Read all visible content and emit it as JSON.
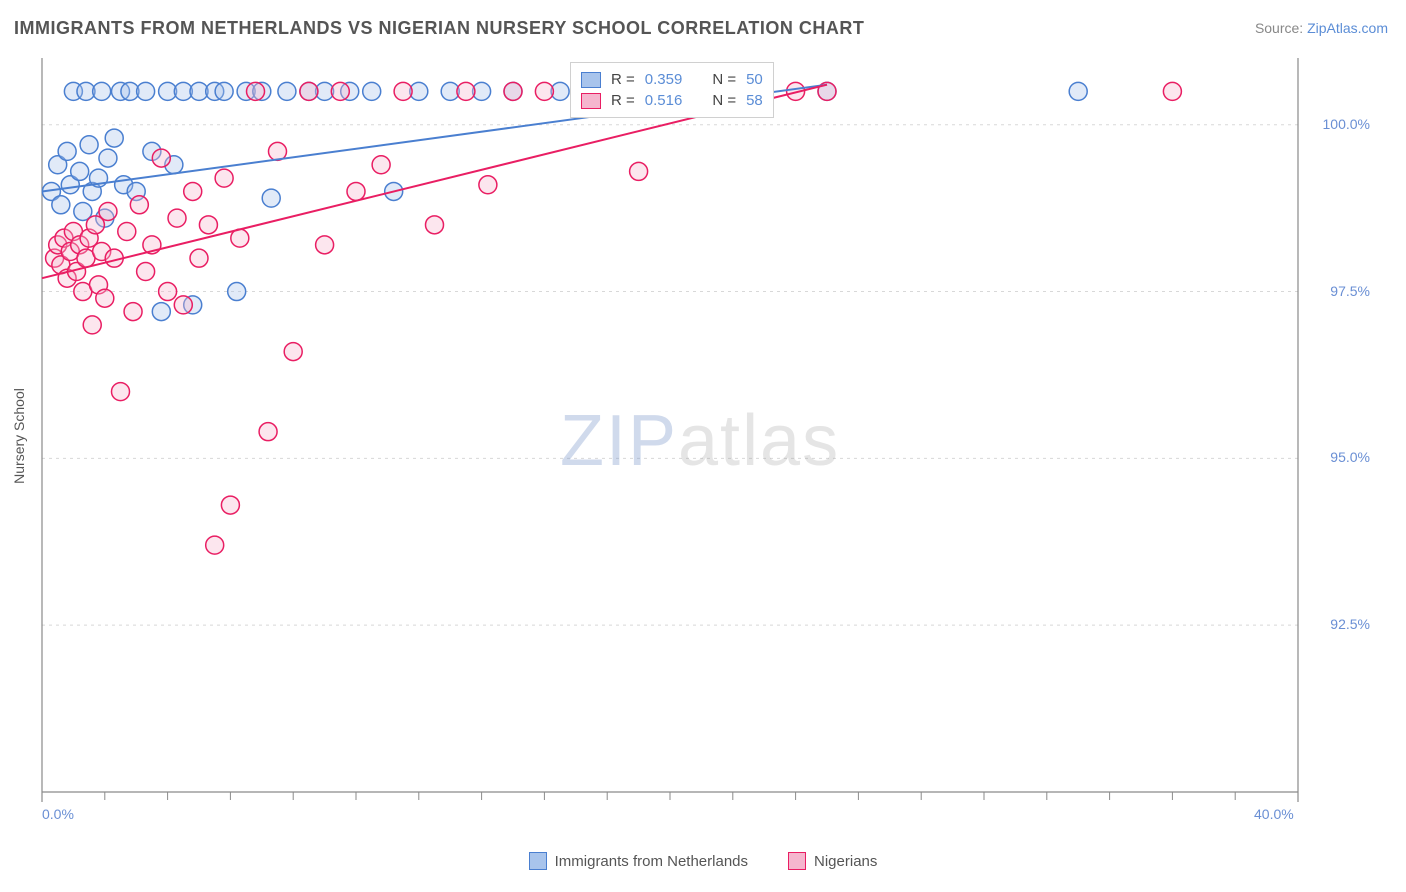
{
  "title": "IMMIGRANTS FROM NETHERLANDS VS NIGERIAN NURSERY SCHOOL CORRELATION CHART",
  "source_label": "Source: ",
  "source_link": "ZipAtlas.com",
  "ylabel": "Nursery School",
  "chart": {
    "type": "scatter",
    "xlim": [
      0,
      40
    ],
    "ylim": [
      90,
      101
    ],
    "xticks": [
      0,
      40
    ],
    "xtick_labels": [
      "0.0%",
      "40.0%"
    ],
    "ytick_values": [
      92.5,
      95.0,
      97.5,
      100.0
    ],
    "ytick_labels": [
      "92.5%",
      "95.0%",
      "97.5%",
      "100.0%"
    ],
    "x_minor_ticks": [
      2,
      4,
      6,
      8,
      10,
      12,
      14,
      16,
      18,
      20,
      22,
      24,
      26,
      28,
      30,
      32,
      34,
      36,
      38
    ],
    "grid_color": "#d8d8d8",
    "axis_color": "#8a8a8a",
    "background_color": "#ffffff",
    "marker_radius": 9,
    "marker_stroke_width": 1.5,
    "marker_fill_opacity": 0.35,
    "line_width": 2,
    "series": [
      {
        "name": "Immigrants from Netherlands",
        "color_stroke": "#4a7fd0",
        "color_fill": "#a8c4ec",
        "R": 0.359,
        "N": 50,
        "regression": {
          "x1": 0,
          "y1": 99.0,
          "x2": 25,
          "y2": 100.6
        },
        "points": [
          [
            0.3,
            99.0
          ],
          [
            0.5,
            99.4
          ],
          [
            0.6,
            98.8
          ],
          [
            0.8,
            99.6
          ],
          [
            0.9,
            99.1
          ],
          [
            1.0,
            100.5
          ],
          [
            1.2,
            99.3
          ],
          [
            1.3,
            98.7
          ],
          [
            1.4,
            100.5
          ],
          [
            1.5,
            99.7
          ],
          [
            1.6,
            99.0
          ],
          [
            1.8,
            99.2
          ],
          [
            1.9,
            100.5
          ],
          [
            2.0,
            98.6
          ],
          [
            2.1,
            99.5
          ],
          [
            2.3,
            99.8
          ],
          [
            2.5,
            100.5
          ],
          [
            2.6,
            99.1
          ],
          [
            2.8,
            100.5
          ],
          [
            3.0,
            99.0
          ],
          [
            3.3,
            100.5
          ],
          [
            3.5,
            99.6
          ],
          [
            3.8,
            97.2
          ],
          [
            4.0,
            100.5
          ],
          [
            4.2,
            99.4
          ],
          [
            4.5,
            100.5
          ],
          [
            4.8,
            97.3
          ],
          [
            5.0,
            100.5
          ],
          [
            5.5,
            100.5
          ],
          [
            5.8,
            100.5
          ],
          [
            6.2,
            97.5
          ],
          [
            6.5,
            100.5
          ],
          [
            7.0,
            100.5
          ],
          [
            7.3,
            98.9
          ],
          [
            7.8,
            100.5
          ],
          [
            8.5,
            100.5
          ],
          [
            9.0,
            100.5
          ],
          [
            9.8,
            100.5
          ],
          [
            10.5,
            100.5
          ],
          [
            11.2,
            99.0
          ],
          [
            12.0,
            100.5
          ],
          [
            13.0,
            100.5
          ],
          [
            14.0,
            100.5
          ],
          [
            15.0,
            100.5
          ],
          [
            16.5,
            100.5
          ],
          [
            18.0,
            100.5
          ],
          [
            19.5,
            100.5
          ],
          [
            22.0,
            100.5
          ],
          [
            25.0,
            100.5
          ],
          [
            33.0,
            100.5
          ]
        ]
      },
      {
        "name": "Nigerians",
        "color_stroke": "#e91e63",
        "color_fill": "#f5b6ce",
        "R": 0.516,
        "N": 58,
        "regression": {
          "x1": 0,
          "y1": 97.7,
          "x2": 25,
          "y2": 100.6
        },
        "points": [
          [
            0.4,
            98.0
          ],
          [
            0.5,
            98.2
          ],
          [
            0.6,
            97.9
          ],
          [
            0.7,
            98.3
          ],
          [
            0.8,
            97.7
          ],
          [
            0.9,
            98.1
          ],
          [
            1.0,
            98.4
          ],
          [
            1.1,
            97.8
          ],
          [
            1.2,
            98.2
          ],
          [
            1.3,
            97.5
          ],
          [
            1.4,
            98.0
          ],
          [
            1.5,
            98.3
          ],
          [
            1.6,
            97.0
          ],
          [
            1.7,
            98.5
          ],
          [
            1.8,
            97.6
          ],
          [
            1.9,
            98.1
          ],
          [
            2.0,
            97.4
          ],
          [
            2.1,
            98.7
          ],
          [
            2.3,
            98.0
          ],
          [
            2.5,
            96.0
          ],
          [
            2.7,
            98.4
          ],
          [
            2.9,
            97.2
          ],
          [
            3.1,
            98.8
          ],
          [
            3.3,
            97.8
          ],
          [
            3.5,
            98.2
          ],
          [
            3.8,
            99.5
          ],
          [
            4.0,
            97.5
          ],
          [
            4.3,
            98.6
          ],
          [
            4.5,
            97.3
          ],
          [
            4.8,
            99.0
          ],
          [
            5.0,
            98.0
          ],
          [
            5.3,
            98.5
          ],
          [
            5.5,
            93.7
          ],
          [
            5.8,
            99.2
          ],
          [
            6.0,
            94.3
          ],
          [
            6.3,
            98.3
          ],
          [
            6.8,
            100.5
          ],
          [
            7.2,
            95.4
          ],
          [
            7.5,
            99.6
          ],
          [
            8.0,
            96.6
          ],
          [
            8.5,
            100.5
          ],
          [
            9.0,
            98.2
          ],
          [
            9.5,
            100.5
          ],
          [
            10.0,
            99.0
          ],
          [
            10.8,
            99.4
          ],
          [
            11.5,
            100.5
          ],
          [
            12.5,
            98.5
          ],
          [
            13.5,
            100.5
          ],
          [
            14.2,
            99.1
          ],
          [
            15.0,
            100.5
          ],
          [
            16.0,
            100.5
          ],
          [
            17.5,
            100.5
          ],
          [
            19.0,
            99.3
          ],
          [
            20.5,
            100.5
          ],
          [
            22.0,
            100.5
          ],
          [
            24.0,
            100.5
          ],
          [
            25.0,
            100.5
          ],
          [
            36.0,
            100.5
          ]
        ]
      }
    ]
  },
  "stats_box": {
    "rows": [
      {
        "swatch_fill": "#a8c4ec",
        "swatch_stroke": "#4a7fd0",
        "R_label": "R =",
        "R": "0.359",
        "N_label": "N =",
        "N": "50"
      },
      {
        "swatch_fill": "#f5b6ce",
        "swatch_stroke": "#e91e63",
        "R_label": "R =",
        "R": "0.516",
        "N_label": "N =",
        "N": "58"
      }
    ]
  },
  "bottom_legend": [
    {
      "fill": "#a8c4ec",
      "stroke": "#4a7fd0",
      "label": "Immigrants from Netherlands"
    },
    {
      "fill": "#f5b6ce",
      "stroke": "#e91e63",
      "label": "Nigerians"
    }
  ],
  "watermark": {
    "zip": "ZIP",
    "atlas": "atlas"
  }
}
